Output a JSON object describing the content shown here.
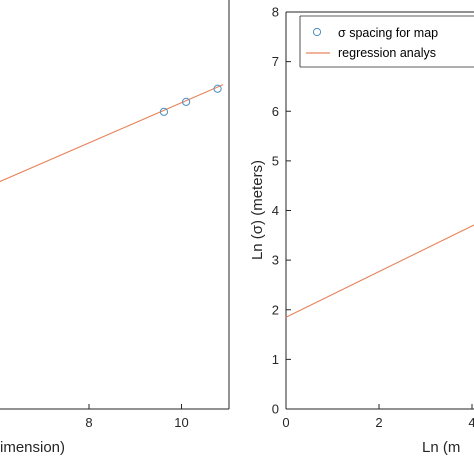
{
  "chart_data": [
    {
      "type": "scatter",
      "xlabel": "imension)",
      "ylabel": "",
      "x_ticks": [
        "8",
        "10"
      ],
      "xlim_visible": [
        5.8,
        10.9
      ],
      "ylim_visible": [
        0,
        8
      ],
      "series": [
        {
          "name": "",
          "kind": "points",
          "x": [
            9.62,
            10.1,
            10.78
          ],
          "y": [
            6.56,
            6.78,
            7.07
          ]
        },
        {
          "name": "",
          "kind": "line",
          "x": [
            5.8,
            10.9
          ],
          "y": [
            4.9,
            7.16
          ]
        }
      ],
      "colors": {
        "points": "#4a90c2",
        "line": "#e8845a",
        "axes": "#262626"
      }
    },
    {
      "type": "scatter",
      "xlabel": "Ln (m",
      "ylabel": "Ln (σ) (meters)",
      "x_ticks": [
        "0",
        "2",
        "4"
      ],
      "y_ticks": [
        "0",
        "1",
        "2",
        "3",
        "4",
        "5",
        "6",
        "7",
        "8"
      ],
      "xlim_visible": [
        0,
        4.2
      ],
      "ylim": [
        0,
        8
      ],
      "legend": {
        "placement": "top-right",
        "entries": [
          {
            "marker": "circle",
            "label": "σ spacing for map"
          },
          {
            "marker": "line",
            "label": "regression analys"
          }
        ]
      },
      "series": [
        {
          "name": "regression analys",
          "kind": "line",
          "x": [
            0,
            4.2
          ],
          "y": [
            1.85,
            3.78
          ]
        }
      ],
      "colors": {
        "points": "#4a90c2",
        "line": "#e8845a",
        "axes": "#262626"
      }
    }
  ]
}
